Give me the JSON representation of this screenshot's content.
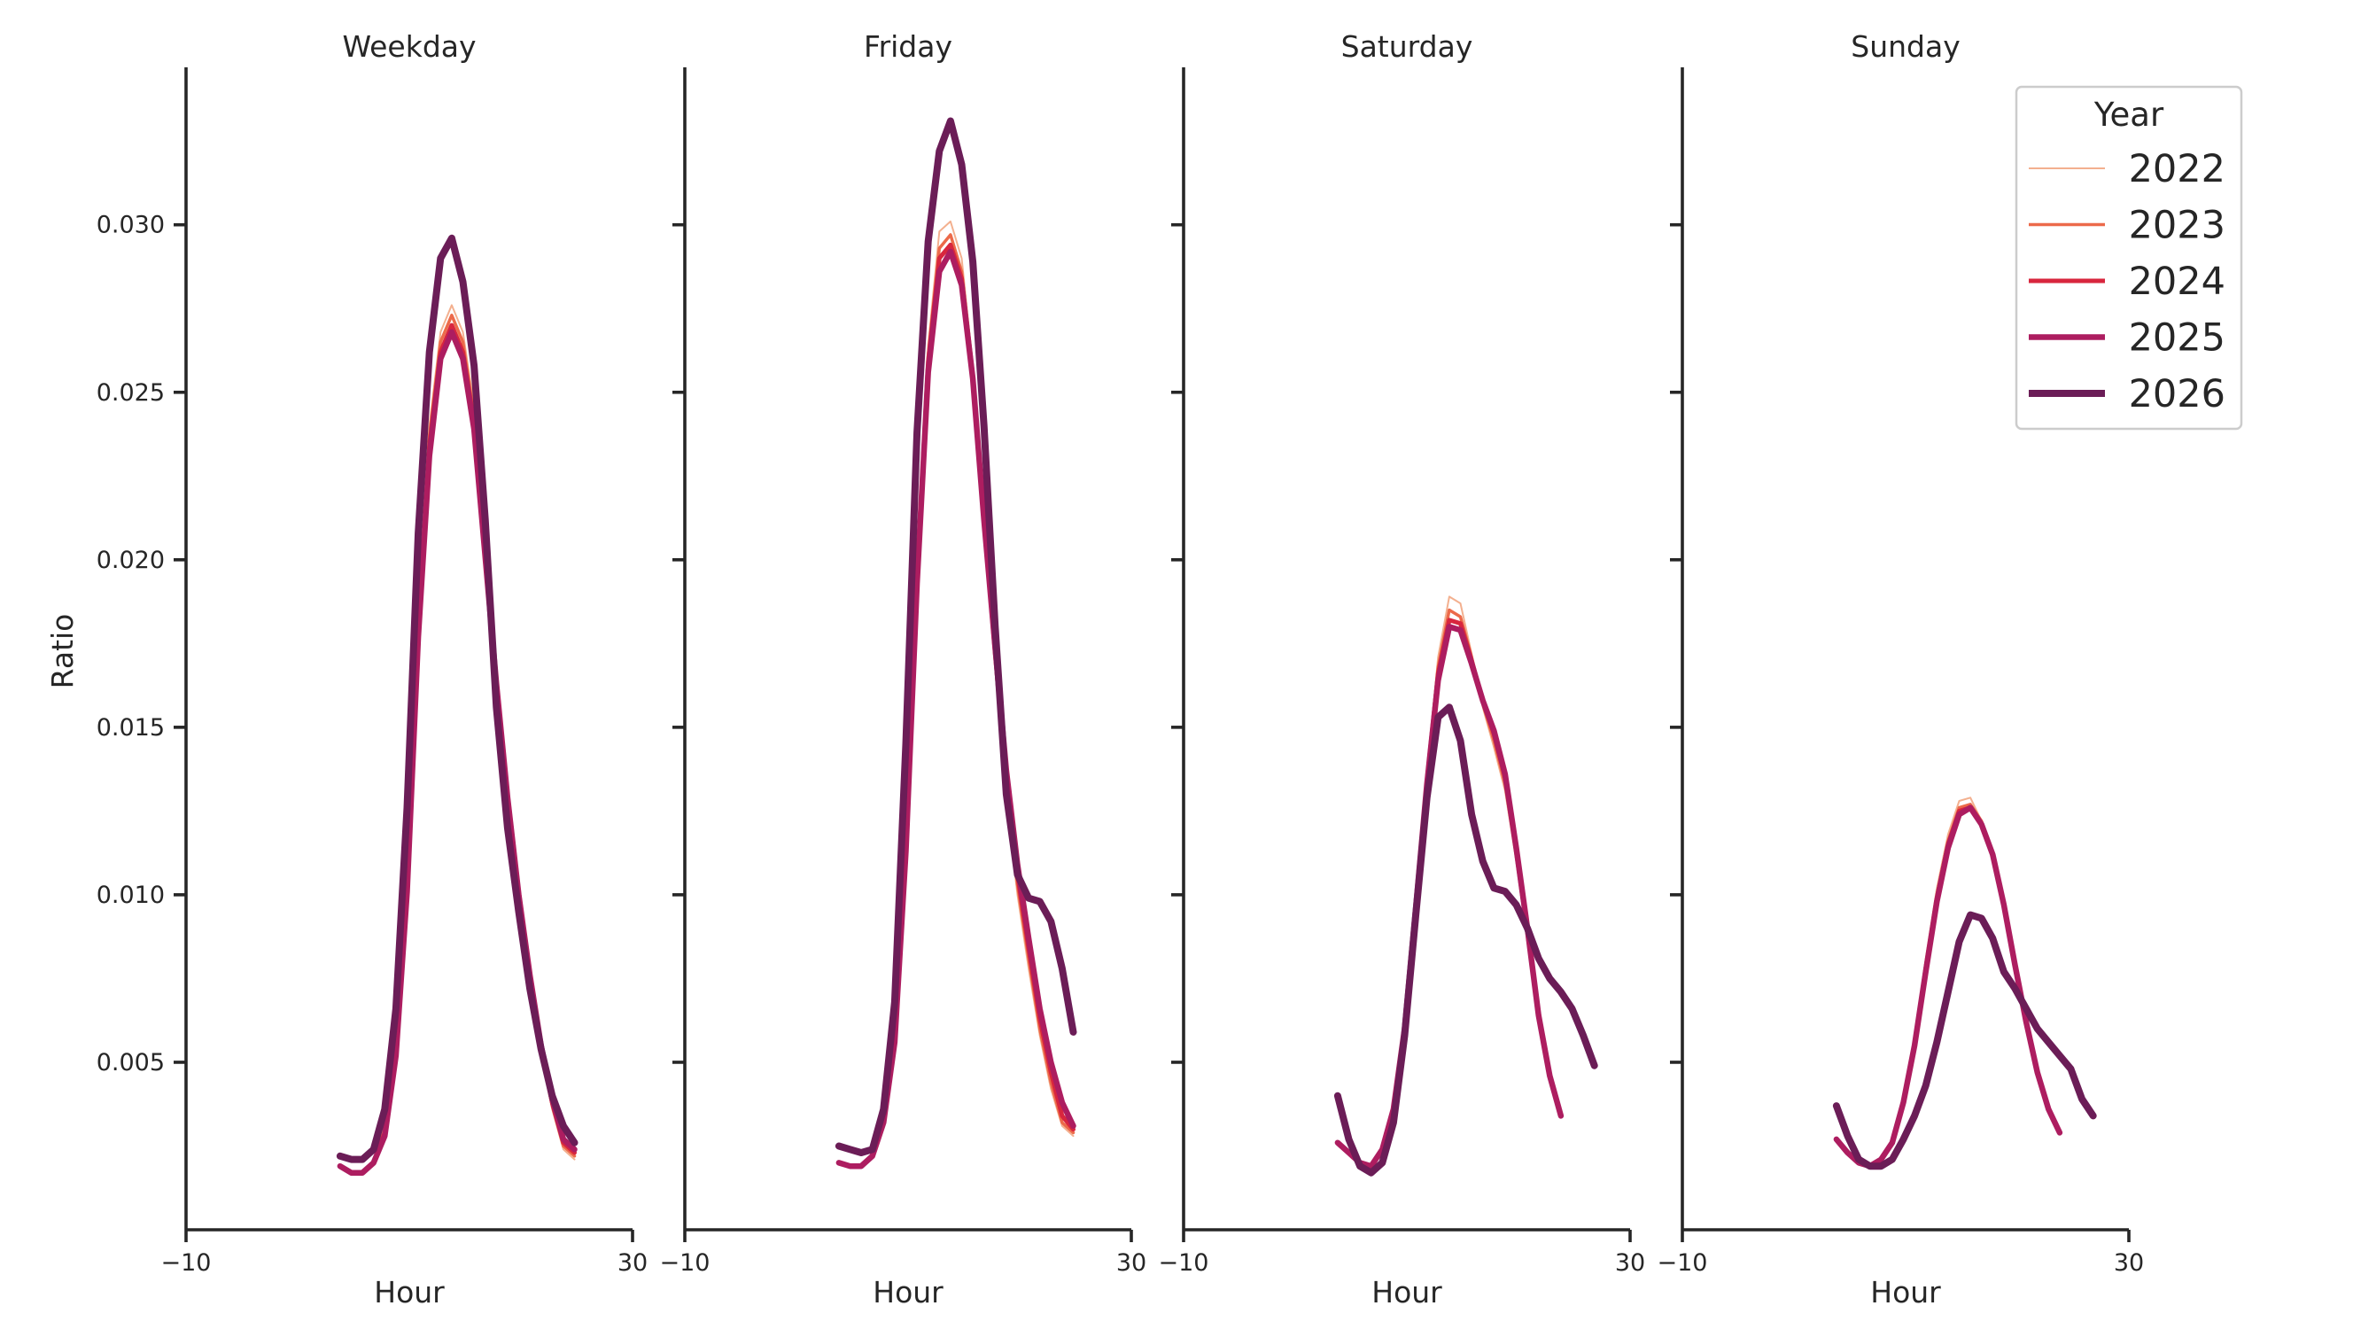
{
  "chart_data": {
    "type": "line",
    "ylabel": "Ratio",
    "xlabel": "Hour",
    "xlim": [
      -10,
      30
    ],
    "ylim": [
      0,
      0.0347
    ],
    "xticks": [
      -10,
      30
    ],
    "xtick_labels": [
      "−10",
      "30"
    ],
    "yticks": [
      0.005,
      0.01,
      0.015,
      0.02,
      0.025,
      0.03
    ],
    "ytick_labels": [
      "0.005",
      "0.010",
      "0.015",
      "0.020",
      "0.025",
      "0.030"
    ],
    "grid": false,
    "legend": {
      "title": "Year",
      "placement": "top-right",
      "entries": [
        "2022",
        "2023",
        "2024",
        "2025",
        "2026"
      ]
    },
    "series_styles": [
      {
        "name": "2022",
        "color": "#f3b08f",
        "width": 2
      },
      {
        "name": "2023",
        "color": "#ec6a4a",
        "width": 3.5
      },
      {
        "name": "2024",
        "color": "#d8263e",
        "width": 5
      },
      {
        "name": "2025",
        "color": "#ad1d60",
        "width": 6.5
      },
      {
        "name": "2026",
        "color": "#6b1d57",
        "width": 8
      }
    ],
    "x": [
      0,
      1,
      2,
      3,
      4,
      5,
      6,
      7,
      8,
      9,
      10,
      11,
      12,
      13,
      14,
      15,
      16,
      17,
      18,
      19,
      20,
      21,
      22,
      23
    ],
    "panels": [
      {
        "title": "Weekday",
        "series": [
          {
            "name": "2022",
            "values": [
              0.0019,
              0.0017,
              0.0017,
              0.002,
              0.0031,
              0.0058,
              0.011,
              0.0186,
              0.024,
              0.0268,
              0.0276,
              0.0268,
              0.0246,
              0.0206,
              0.0166,
              0.013,
              0.01,
              0.0074,
              0.0052,
              0.0036,
              0.0024,
              0.0021,
              null,
              null
            ]
          },
          {
            "name": "2023",
            "values": [
              0.0019,
              0.0017,
              0.0017,
              0.002,
              0.003,
              0.0056,
              0.0107,
              0.0183,
              0.0237,
              0.0265,
              0.0273,
              0.0265,
              0.0243,
              0.0204,
              0.0165,
              0.013,
              0.0101,
              0.0075,
              0.0053,
              0.0037,
              0.0025,
              0.0022,
              null,
              null
            ]
          },
          {
            "name": "2024",
            "values": [
              0.0019,
              0.0017,
              0.0017,
              0.002,
              0.0029,
              0.0054,
              0.0104,
              0.018,
              0.0234,
              0.0262,
              0.027,
              0.0262,
              0.0241,
              0.0203,
              0.0164,
              0.013,
              0.0101,
              0.0076,
              0.0054,
              0.0038,
              0.0026,
              0.0023,
              null,
              null
            ]
          },
          {
            "name": "2025",
            "values": [
              0.0019,
              0.0017,
              0.0017,
              0.002,
              0.0028,
              0.0052,
              0.0101,
              0.0177,
              0.0231,
              0.026,
              0.0268,
              0.026,
              0.0239,
              0.0201,
              0.0163,
              0.0129,
              0.01,
              0.0076,
              0.0055,
              0.0039,
              0.0027,
              0.0024,
              null,
              null
            ]
          },
          {
            "name": "2026",
            "values": [
              0.0022,
              0.0021,
              0.0021,
              0.0024,
              0.0036,
              0.0066,
              0.0126,
              0.0208,
              0.0262,
              0.029,
              0.0296,
              0.0283,
              0.0258,
              0.0212,
              0.0156,
              0.012,
              0.0095,
              0.0072,
              0.0054,
              0.004,
              0.0031,
              0.0026,
              null,
              null
            ]
          }
        ]
      },
      {
        "title": "Friday",
        "series": [
          {
            "name": "2022",
            "values": [
              0.002,
              0.0019,
              0.0019,
              0.0022,
              0.0034,
              0.006,
              0.012,
              0.02,
              0.0264,
              0.0298,
              0.0301,
              0.029,
              0.0258,
              0.0212,
              0.017,
              0.0128,
              0.01,
              0.0078,
              0.0058,
              0.0042,
              0.0031,
              0.0028,
              null,
              null
            ]
          },
          {
            "name": "2023",
            "values": [
              0.002,
              0.0019,
              0.0019,
              0.0022,
              0.0033,
              0.0058,
              0.0117,
              0.0197,
              0.0261,
              0.0293,
              0.0297,
              0.0286,
              0.0256,
              0.0212,
              0.0171,
              0.013,
              0.0103,
              0.0081,
              0.006,
              0.0044,
              0.0032,
              0.0029,
              null,
              null
            ]
          },
          {
            "name": "2024",
            "values": [
              0.002,
              0.0019,
              0.0019,
              0.0022,
              0.0033,
              0.0057,
              0.0115,
              0.0195,
              0.0259,
              0.029,
              0.0294,
              0.0284,
              0.0255,
              0.0212,
              0.0172,
              0.0133,
              0.0106,
              0.0084,
              0.0063,
              0.0047,
              0.0034,
              0.003,
              null,
              null
            ]
          },
          {
            "name": "2025",
            "values": [
              0.002,
              0.0019,
              0.0019,
              0.0022,
              0.0032,
              0.0056,
              0.0113,
              0.0193,
              0.0256,
              0.0286,
              0.0292,
              0.0282,
              0.0254,
              0.0212,
              0.0174,
              0.0137,
              0.0109,
              0.0087,
              0.0066,
              0.005,
              0.0038,
              0.0031,
              null,
              null
            ]
          },
          {
            "name": "2026",
            "values": [
              0.0025,
              0.0024,
              0.0023,
              0.0024,
              0.0036,
              0.0068,
              0.0145,
              0.0238,
              0.0295,
              0.0322,
              0.0331,
              0.0318,
              0.0289,
              0.024,
              0.018,
              0.013,
              0.0106,
              0.0099,
              0.0098,
              0.0092,
              0.0078,
              0.0059,
              null,
              null
            ]
          }
        ]
      },
      {
        "title": "Saturday",
        "series": [
          {
            "name": "2022",
            "values": [
              0.0026,
              0.0023,
              0.002,
              0.0019,
              0.0023,
              0.0036,
              0.006,
              0.0096,
              0.0136,
              0.0171,
              0.0189,
              0.0187,
              0.0172,
              0.0156,
              0.0144,
              0.0131,
              0.011,
              0.0086,
              0.0064,
              0.0046,
              0.0034,
              null,
              null,
              null
            ]
          },
          {
            "name": "2023",
            "values": [
              0.0026,
              0.0023,
              0.002,
              0.0019,
              0.0023,
              0.0036,
              0.006,
              0.0096,
              0.0135,
              0.0168,
              0.0185,
              0.0183,
              0.0171,
              0.0157,
              0.0146,
              0.0133,
              0.0112,
              0.0088,
              0.0064,
              0.0046,
              0.0034,
              null,
              null,
              null
            ]
          },
          {
            "name": "2024",
            "values": [
              0.0026,
              0.0023,
              0.002,
              0.0019,
              0.0024,
              0.0036,
              0.006,
              0.0096,
              0.0134,
              0.0166,
              0.0182,
              0.0181,
              0.017,
              0.0158,
              0.0148,
              0.0135,
              0.0113,
              0.0089,
              0.0064,
              0.0046,
              0.0034,
              null,
              null,
              null
            ]
          },
          {
            "name": "2025",
            "values": [
              0.0026,
              0.0023,
              0.002,
              0.0019,
              0.0024,
              0.0036,
              0.006,
              0.0096,
              0.0133,
              0.0164,
              0.018,
              0.0179,
              0.0169,
              0.0158,
              0.0149,
              0.0136,
              0.0114,
              0.009,
              0.0064,
              0.0046,
              0.0034,
              null,
              null,
              null
            ]
          },
          {
            "name": "2026",
            "values": [
              0.004,
              0.0027,
              0.0019,
              0.0017,
              0.002,
              0.0032,
              0.0058,
              0.0094,
              0.0129,
              0.0153,
              0.0156,
              0.0146,
              0.0124,
              0.011,
              0.0102,
              0.0101,
              0.0097,
              0.009,
              0.0081,
              0.0075,
              0.0071,
              0.0066,
              0.0058,
              0.0049
            ]
          }
        ]
      },
      {
        "title": "Sunday",
        "series": [
          {
            "name": "2022",
            "values": [
              0.0027,
              0.0023,
              0.002,
              0.0019,
              0.0021,
              0.0026,
              0.0038,
              0.0057,
              0.0081,
              0.0102,
              0.0118,
              0.0128,
              0.0129,
              0.0122,
              0.0112,
              0.0097,
              0.0079,
              0.0062,
              0.0047,
              0.0036,
              0.0029,
              null,
              null,
              null
            ]
          },
          {
            "name": "2023",
            "values": [
              0.0027,
              0.0023,
              0.002,
              0.0019,
              0.0021,
              0.0026,
              0.0038,
              0.0056,
              0.0079,
              0.01,
              0.0116,
              0.0126,
              0.0127,
              0.0122,
              0.0112,
              0.0097,
              0.0079,
              0.0062,
              0.0047,
              0.0036,
              0.0029,
              null,
              null,
              null
            ]
          },
          {
            "name": "2024",
            "values": [
              0.0027,
              0.0023,
              0.002,
              0.0019,
              0.0021,
              0.0026,
              0.0038,
              0.0055,
              0.0078,
              0.0099,
              0.0115,
              0.0125,
              0.0126,
              0.0121,
              0.0112,
              0.0097,
              0.0079,
              0.0062,
              0.0047,
              0.0036,
              0.0029,
              null,
              null,
              null
            ]
          },
          {
            "name": "2025",
            "values": [
              0.0027,
              0.0023,
              0.002,
              0.0019,
              0.0021,
              0.0026,
              0.0038,
              0.0055,
              0.0077,
              0.0098,
              0.0114,
              0.0124,
              0.0126,
              0.0121,
              0.0112,
              0.0097,
              0.0079,
              0.0062,
              0.0047,
              0.0036,
              0.0029,
              null,
              null,
              null
            ]
          },
          {
            "name": "2026",
            "values": [
              0.0037,
              0.0028,
              0.0021,
              0.0019,
              0.0019,
              0.0021,
              0.0027,
              0.0034,
              0.0043,
              0.0056,
              0.0071,
              0.0086,
              0.0094,
              0.0093,
              0.0087,
              0.0077,
              0.0072,
              0.0066,
              0.006,
              0.0056,
              0.0052,
              0.0048,
              0.0039,
              0.0034
            ]
          }
        ]
      }
    ]
  }
}
